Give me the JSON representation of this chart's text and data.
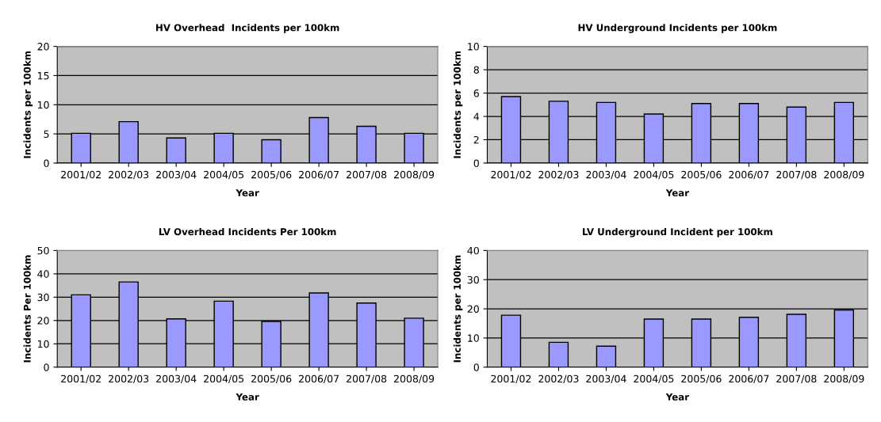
{
  "chart_data": [
    {
      "type": "bar",
      "title": "HV Overhead  Incidents per 100km",
      "xlabel": "Year",
      "ylabel": "Incidents per 100km",
      "categories": [
        "2001/02",
        "2002/03",
        "2003/04",
        "2004/05",
        "2005/06",
        "2006/07",
        "2007/08",
        "2008/09"
      ],
      "values": [
        5.1,
        7.1,
        4.3,
        5.1,
        4.0,
        7.8,
        6.3,
        5.1
      ],
      "color": "#9999ff",
      "ylim": [
        0,
        20
      ],
      "yticks": [
        0,
        5,
        10,
        15,
        20
      ],
      "grid": "y"
    },
    {
      "type": "bar",
      "title": "HV Underground Incidents per 100km",
      "xlabel": "Year",
      "ylabel": "Incidents per 100km",
      "categories": [
        "2001/02",
        "2002/03",
        "2003/04",
        "2004/05",
        "2005/06",
        "2006/07",
        "2007/08",
        "2008/09"
      ],
      "values": [
        5.7,
        5.3,
        5.2,
        4.2,
        5.1,
        5.1,
        4.8,
        5.2
      ],
      "color": "#9999ff",
      "ylim": [
        0,
        10
      ],
      "yticks": [
        0,
        2,
        4,
        6,
        8,
        10
      ],
      "grid": "y"
    },
    {
      "type": "bar",
      "title": "LV Overhead Incidents Per 100km",
      "xlabel": "Year",
      "ylabel": "Incidents Per 100km",
      "categories": [
        "2001/02",
        "2002/03",
        "2003/04",
        "2004/05",
        "2005/06",
        "2006/07",
        "2007/08",
        "2008/09"
      ],
      "values": [
        31,
        36.5,
        20.7,
        28.3,
        19.6,
        31.8,
        27.5,
        21
      ],
      "color": "#9999ff",
      "ylim": [
        0,
        50
      ],
      "yticks": [
        0,
        10,
        20,
        30,
        40,
        50
      ],
      "grid": "y"
    },
    {
      "type": "bar",
      "title": "LV Underground Incident per 100km",
      "xlabel": "Year",
      "ylabel": "Incidents per 100km",
      "categories": [
        "2001/02",
        "2002/03",
        "2003/04",
        "2004/05",
        "2005/06",
        "2006/07",
        "2007/08",
        "2008/09"
      ],
      "values": [
        17.8,
        8.5,
        7.2,
        16.5,
        16.5,
        17.1,
        18.1,
        19.6
      ],
      "color": "#9999ff",
      "ylim": [
        0,
        40
      ],
      "yticks": [
        0,
        10,
        20,
        30,
        40
      ],
      "grid": "y"
    }
  ]
}
